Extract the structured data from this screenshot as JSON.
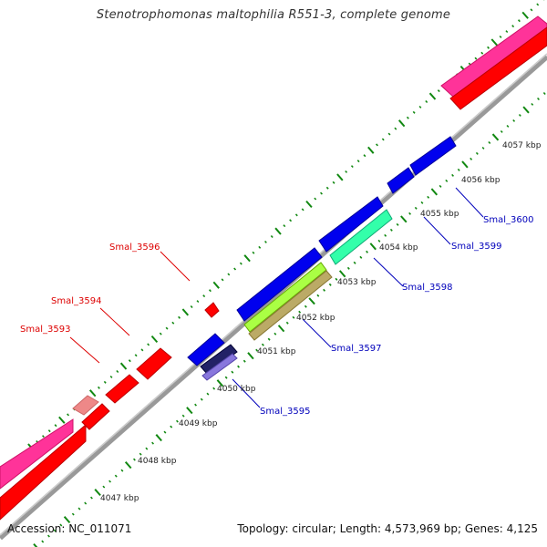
{
  "title": "Stenotrophomonas maltophilia R551-3, complete genome",
  "footer": {
    "accession": "Accession: NC_011071",
    "summary": "Topology: circular; Length: 4,573,969 bp; Genes: 4,125"
  },
  "colors": {
    "forward_label": "#dd0000",
    "reverse_label": "#0000bb",
    "tick": "#118811",
    "backbone": "#999999",
    "gene_red": "#ff0000",
    "gene_pink": "#ff3399",
    "gene_blue": "#0000ee",
    "gene_light_red": "#ee8888",
    "gene_cyan": "#33ffaa",
    "gene_yellow_green": "#aaff44",
    "gene_tan": "#bbaa66",
    "gene_navy": "#222266",
    "gene_violet": "#8877dd"
  },
  "kbp_labels": [
    "4047 kbp",
    "4048 kbp",
    "4049 kbp",
    "4050 kbp",
    "4051 kbp",
    "4052 kbp",
    "4053 kbp",
    "4054 kbp",
    "4055 kbp",
    "4056 kbp",
    "4057 kbp"
  ],
  "forward_gene_labels": [
    "Smal_3593",
    "Smal_3594",
    "Smal_3596"
  ],
  "reverse_gene_labels": [
    "Smal_3595",
    "Smal_3597",
    "Smal_3598",
    "Smal_3599",
    "Smal_3600"
  ]
}
